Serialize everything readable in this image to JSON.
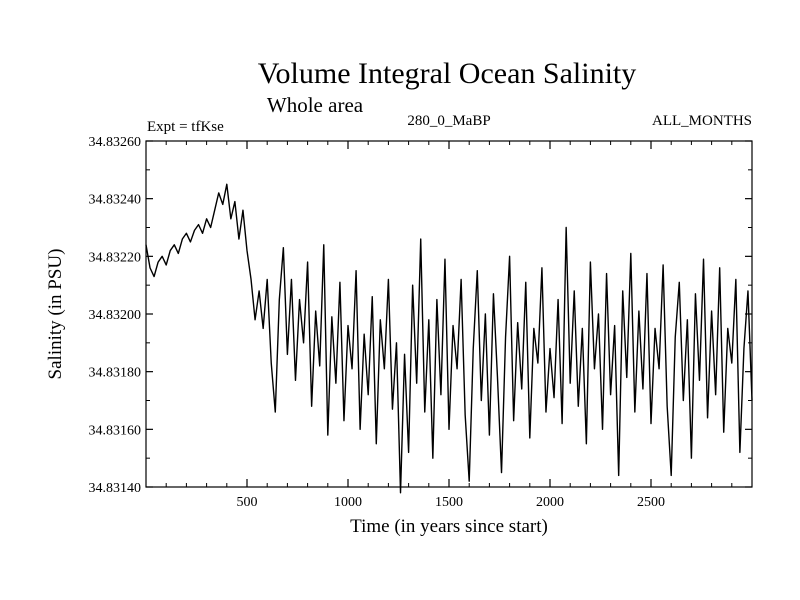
{
  "chart_data": {
    "type": "line",
    "title": "Volume Integral Ocean Salinity",
    "subtitle": "Whole area",
    "annotations": {
      "experiment": "Expt = tfKse",
      "period": "280_0_MaBP",
      "months": "ALL_MONTHS"
    },
    "xlabel": "Time (in years since start)",
    "ylabel": "Salinity (in PSU)",
    "xlim": [
      0,
      3000
    ],
    "ylim": [
      34.8314,
      34.8326
    ],
    "x_ticks": [
      500,
      1000,
      1500,
      2000,
      2500
    ],
    "x_tick_labels": [
      "500",
      "1000",
      "1500",
      "2000",
      "2500"
    ],
    "y_ticks": [
      34.8314,
      34.8316,
      34.8318,
      34.832,
      34.8322,
      34.8324,
      34.8326
    ],
    "y_tick_labels": [
      "34.83140",
      "34.83160",
      "34.83180",
      "34.83200",
      "34.83220",
      "34.83240",
      "34.83260"
    ],
    "series": [
      {
        "name": "Salinity",
        "color": "#000000",
        "x": [
          0,
          20,
          40,
          60,
          80,
          100,
          120,
          140,
          160,
          180,
          200,
          220,
          240,
          260,
          280,
          300,
          320,
          340,
          360,
          380,
          400,
          420,
          440,
          460,
          480,
          500,
          520,
          540,
          560,
          580,
          600,
          620,
          640,
          660,
          680,
          700,
          720,
          740,
          760,
          780,
          800,
          820,
          840,
          860,
          880,
          900,
          920,
          940,
          960,
          980,
          1000,
          1020,
          1040,
          1060,
          1080,
          1100,
          1120,
          1140,
          1160,
          1180,
          1200,
          1220,
          1240,
          1260,
          1280,
          1300,
          1320,
          1340,
          1360,
          1380,
          1400,
          1420,
          1440,
          1460,
          1480,
          1500,
          1520,
          1540,
          1560,
          1580,
          1600,
          1620,
          1640,
          1660,
          1680,
          1700,
          1720,
          1740,
          1760,
          1780,
          1800,
          1820,
          1840,
          1860,
          1880,
          1900,
          1920,
          1940,
          1960,
          1980,
          2000,
          2020,
          2040,
          2060,
          2080,
          2100,
          2120,
          2140,
          2160,
          2180,
          2200,
          2220,
          2240,
          2260,
          2280,
          2300,
          2320,
          2340,
          2360,
          2380,
          2400,
          2420,
          2440,
          2460,
          2480,
          2500,
          2520,
          2540,
          2560,
          2580,
          2600,
          2620,
          2640,
          2660,
          2680,
          2700,
          2720,
          2740,
          2760,
          2780,
          2800,
          2820,
          2840,
          2860,
          2880,
          2900,
          2920,
          2940,
          2960,
          2980,
          3000
        ],
        "values": [
          34.83224,
          34.83216,
          34.83213,
          34.83218,
          34.8322,
          34.83217,
          34.83222,
          34.83224,
          34.83221,
          34.83226,
          34.83228,
          34.83225,
          34.83229,
          34.83231,
          34.83228,
          34.83233,
          34.8323,
          34.83236,
          34.83242,
          34.83238,
          34.83245,
          34.83233,
          34.83239,
          34.83226,
          34.83236,
          34.83222,
          34.83212,
          34.83198,
          34.83208,
          34.83195,
          34.83212,
          34.83183,
          34.83166,
          34.83205,
          34.83223,
          34.83186,
          34.83212,
          34.83177,
          34.83205,
          34.8319,
          34.83218,
          34.83168,
          34.83201,
          34.83182,
          34.83224,
          34.83158,
          34.83199,
          34.83176,
          34.83211,
          34.83163,
          34.83196,
          34.83181,
          34.83215,
          34.8316,
          34.83193,
          34.83172,
          34.83206,
          34.83155,
          34.83198,
          34.83181,
          34.83212,
          34.83167,
          34.8319,
          34.83138,
          34.83186,
          34.83152,
          34.8321,
          34.83176,
          34.83226,
          34.83166,
          34.83198,
          34.8315,
          34.83205,
          34.83172,
          34.83219,
          34.8316,
          34.83196,
          34.83181,
          34.83212,
          34.83165,
          34.83142,
          34.83188,
          34.83215,
          34.8317,
          34.832,
          34.83158,
          34.83207,
          34.83178,
          34.83145,
          34.83192,
          34.8322,
          34.83163,
          34.83197,
          34.83174,
          34.83211,
          34.83157,
          34.83195,
          34.83183,
          34.83216,
          34.83166,
          34.83188,
          34.83171,
          34.83205,
          34.83162,
          34.8323,
          34.83176,
          34.83208,
          34.83168,
          34.83195,
          34.83155,
          34.83218,
          34.83181,
          34.832,
          34.8316,
          34.83214,
          34.83172,
          34.83196,
          34.83144,
          34.83208,
          34.83178,
          34.83221,
          34.83166,
          34.83201,
          34.83174,
          34.83214,
          34.83162,
          34.83195,
          34.83181,
          34.83217,
          34.83168,
          34.83144,
          34.83192,
          34.83211,
          34.8317,
          34.83198,
          34.8315,
          34.83207,
          34.83177,
          34.83219,
          34.83164,
          34.83201,
          34.83172,
          34.83216,
          34.83159,
          34.83195,
          34.83183,
          34.83212,
          34.83152,
          34.83188,
          34.83208,
          34.8317
        ]
      }
    ]
  }
}
